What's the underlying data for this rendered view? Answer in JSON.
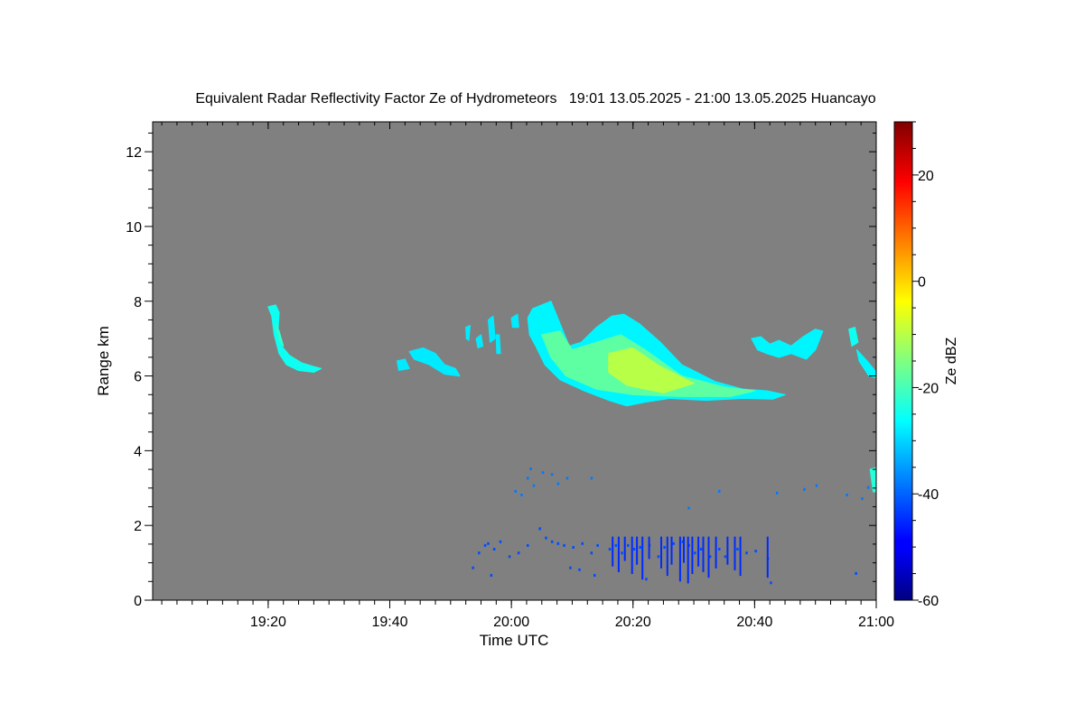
{
  "chart_data": {
    "type": "heatmap",
    "title": "Equivalent Radar Reflectivity Factor Ze of Hydrometeors   19:01 13.05.2025 - 21:00 13.05.2025 Huancayo",
    "xlabel": "Time UTC",
    "ylabel": "Range km",
    "x_range_minutes": [
      1141,
      1260
    ],
    "xticks": [
      {
        "label": "19:20",
        "minutes": 1160
      },
      {
        "label": "19:40",
        "minutes": 1180
      },
      {
        "label": "20:00",
        "minutes": 1200
      },
      {
        "label": "20:20",
        "minutes": 1220
      },
      {
        "label": "20:40",
        "minutes": 1240
      },
      {
        "label": "21:00",
        "minutes": 1260
      }
    ],
    "ylim": [
      0,
      12.8
    ],
    "yticks": [
      0,
      2,
      4,
      6,
      8,
      10,
      12
    ],
    "background_color": "#808080",
    "colorbar": {
      "label": "Ze dBZ",
      "range": [
        -60,
        30
      ],
      "ticks": [
        -60,
        -40,
        -20,
        0,
        20
      ],
      "colormap": "jet"
    },
    "echoes": [
      {
        "kind": "cloud",
        "dbz": -25,
        "points": [
          [
            1160.0,
            7.85
          ],
          [
            1161.2,
            7.9
          ],
          [
            1161.8,
            7.7
          ],
          [
            1161.6,
            7.2
          ],
          [
            1162.2,
            6.8
          ],
          [
            1163.5,
            6.55
          ],
          [
            1165.5,
            6.35
          ],
          [
            1167.5,
            6.25
          ],
          [
            1168.7,
            6.2
          ],
          [
            1167.5,
            6.1
          ],
          [
            1165.0,
            6.15
          ],
          [
            1163.0,
            6.3
          ],
          [
            1161.8,
            6.6
          ],
          [
            1161.0,
            7.1
          ],
          [
            1160.6,
            7.6
          ]
        ]
      },
      {
        "kind": "cloud",
        "dbz": -22,
        "points": [
          [
            1161.2,
            7.4
          ],
          [
            1161.8,
            7.2
          ],
          [
            1162.5,
            6.8
          ],
          [
            1161.9,
            6.9
          ]
        ]
      },
      {
        "kind": "cloud",
        "dbz": -28,
        "points": [
          [
            1181.2,
            6.4
          ],
          [
            1182.5,
            6.45
          ],
          [
            1183.2,
            6.2
          ],
          [
            1181.5,
            6.15
          ]
        ]
      },
      {
        "kind": "cloud",
        "dbz": -28,
        "points": [
          [
            1183.2,
            6.65
          ],
          [
            1185.5,
            6.75
          ],
          [
            1187.5,
            6.6
          ],
          [
            1189.0,
            6.3
          ],
          [
            1190.8,
            6.2
          ],
          [
            1191.5,
            6.0
          ],
          [
            1189.0,
            6.05
          ],
          [
            1186.5,
            6.3
          ],
          [
            1184.0,
            6.45
          ]
        ]
      },
      {
        "kind": "cloud",
        "dbz": -28,
        "points": [
          [
            1192.5,
            7.3
          ],
          [
            1193.2,
            7.35
          ],
          [
            1193.0,
            6.95
          ],
          [
            1192.6,
            7.0
          ]
        ]
      },
      {
        "kind": "cloud",
        "dbz": -28,
        "points": [
          [
            1194.2,
            7.0
          ],
          [
            1195.0,
            7.1
          ],
          [
            1195.3,
            6.8
          ],
          [
            1194.5,
            6.75
          ]
        ]
      },
      {
        "kind": "cloud",
        "dbz": -28,
        "points": [
          [
            1196.2,
            7.5
          ],
          [
            1197.0,
            7.6
          ],
          [
            1197.3,
            7.0
          ],
          [
            1196.5,
            6.9
          ]
        ]
      },
      {
        "kind": "cloud",
        "dbz": -28,
        "points": [
          [
            1197.5,
            7.1
          ],
          [
            1198.0,
            7.1
          ],
          [
            1198.2,
            6.6
          ],
          [
            1197.6,
            6.6
          ]
        ]
      },
      {
        "kind": "cloud",
        "dbz": -28,
        "points": [
          [
            1200.0,
            7.55
          ],
          [
            1201.0,
            7.65
          ],
          [
            1201.2,
            7.3
          ],
          [
            1200.2,
            7.3
          ]
        ]
      },
      {
        "kind": "cloud",
        "dbz": -27,
        "points": [
          [
            1202.7,
            7.55
          ],
          [
            1203.5,
            7.8
          ],
          [
            1205.0,
            7.9
          ],
          [
            1206.5,
            8.0
          ],
          [
            1208.5,
            7.2
          ],
          [
            1209.5,
            6.8
          ],
          [
            1211.5,
            6.9
          ],
          [
            1214.0,
            7.3
          ],
          [
            1216.5,
            7.6
          ],
          [
            1218.5,
            7.65
          ],
          [
            1221.0,
            7.4
          ],
          [
            1224.5,
            6.9
          ],
          [
            1228.0,
            6.3
          ],
          [
            1233.5,
            5.85
          ],
          [
            1238.0,
            5.65
          ],
          [
            1242.0,
            5.6
          ],
          [
            1245.0,
            5.5
          ],
          [
            1243.0,
            5.38
          ],
          [
            1238.0,
            5.4
          ],
          [
            1232.0,
            5.35
          ],
          [
            1226.0,
            5.4
          ],
          [
            1222.0,
            5.3
          ],
          [
            1219.0,
            5.2
          ],
          [
            1216.0,
            5.35
          ],
          [
            1212.0,
            5.6
          ],
          [
            1208.0,
            5.9
          ],
          [
            1205.5,
            6.3
          ],
          [
            1204.0,
            6.8
          ],
          [
            1203.0,
            7.1
          ]
        ]
      },
      {
        "kind": "cloud",
        "dbz": -18,
        "points": [
          [
            1205.0,
            7.1
          ],
          [
            1208.0,
            7.2
          ],
          [
            1210.0,
            6.7
          ],
          [
            1214.0,
            6.9
          ],
          [
            1218.0,
            7.1
          ],
          [
            1222.0,
            6.7
          ],
          [
            1228.0,
            6.0
          ],
          [
            1235.0,
            5.7
          ],
          [
            1240.0,
            5.6
          ],
          [
            1236.0,
            5.45
          ],
          [
            1228.0,
            5.45
          ],
          [
            1220.0,
            5.5
          ],
          [
            1214.0,
            5.65
          ],
          [
            1209.0,
            6.0
          ],
          [
            1206.5,
            6.5
          ]
        ]
      },
      {
        "kind": "cloud",
        "dbz": -10,
        "points": [
          [
            1216.0,
            6.6
          ],
          [
            1220.0,
            6.75
          ],
          [
            1224.0,
            6.3
          ],
          [
            1230.0,
            5.8
          ],
          [
            1225.0,
            5.55
          ],
          [
            1219.0,
            5.75
          ],
          [
            1216.0,
            6.1
          ]
        ]
      },
      {
        "kind": "cloud",
        "dbz": -27,
        "points": [
          [
            1239.5,
            7.0
          ],
          [
            1241.0,
            7.05
          ],
          [
            1242.5,
            6.85
          ],
          [
            1244.0,
            6.95
          ],
          [
            1246.0,
            6.8
          ],
          [
            1248.0,
            7.05
          ],
          [
            1250.0,
            7.25
          ],
          [
            1251.2,
            7.2
          ],
          [
            1250.0,
            6.7
          ],
          [
            1248.5,
            6.45
          ],
          [
            1246.0,
            6.6
          ],
          [
            1244.0,
            6.5
          ],
          [
            1242.0,
            6.6
          ],
          [
            1240.5,
            6.7
          ]
        ]
      },
      {
        "kind": "cloud",
        "dbz": -25,
        "points": [
          [
            1255.5,
            7.25
          ],
          [
            1256.5,
            7.3
          ],
          [
            1257.0,
            6.9
          ],
          [
            1256.0,
            6.8
          ]
        ]
      },
      {
        "kind": "cloud",
        "dbz": -27,
        "points": [
          [
            1256.8,
            6.7
          ],
          [
            1258.5,
            6.4
          ],
          [
            1260.0,
            6.1
          ],
          [
            1260.0,
            5.95
          ],
          [
            1258.8,
            6.0
          ],
          [
            1257.2,
            6.4
          ]
        ]
      },
      {
        "kind": "cloud",
        "dbz": -23,
        "points": [
          [
            1259.0,
            3.5
          ],
          [
            1260.0,
            3.55
          ],
          [
            1260.0,
            2.9
          ],
          [
            1259.5,
            2.9
          ]
        ]
      },
      {
        "kind": "speckle",
        "dbz": -38,
        "points": [
          [
            1202.5,
            3.3
          ],
          [
            1203.5,
            3.1
          ],
          [
            1205.0,
            3.45
          ],
          [
            1206.5,
            3.4
          ],
          [
            1203.0,
            3.55
          ],
          [
            1209.0,
            3.3
          ],
          [
            1213.0,
            3.3
          ],
          [
            1200.5,
            2.95
          ],
          [
            1201.5,
            2.85
          ],
          [
            1207.5,
            3.15
          ],
          [
            1229.0,
            2.5
          ],
          [
            1234.0,
            2.95
          ],
          [
            1243.5,
            2.9
          ],
          [
            1248.0,
            3.0
          ],
          [
            1250.0,
            3.1
          ],
          [
            1255.0,
            2.85
          ],
          [
            1258.5,
            3.05
          ],
          [
            1257.5,
            2.75
          ]
        ]
      },
      {
        "kind": "speckle",
        "dbz": -42,
        "points": [
          [
            1193.5,
            0.9
          ],
          [
            1194.5,
            1.3
          ],
          [
            1195.5,
            1.5
          ],
          [
            1196.0,
            1.55
          ],
          [
            1197.0,
            1.4
          ],
          [
            1198.0,
            1.6
          ],
          [
            1196.5,
            0.7
          ],
          [
            1199.5,
            1.2
          ],
          [
            1201.0,
            1.3
          ],
          [
            1202.5,
            1.5
          ],
          [
            1204.5,
            1.95
          ],
          [
            1205.5,
            1.7
          ],
          [
            1206.5,
            1.6
          ],
          [
            1207.5,
            1.55
          ],
          [
            1208.5,
            1.5
          ],
          [
            1210.0,
            1.45
          ],
          [
            1211.5,
            1.55
          ],
          [
            1213.0,
            1.3
          ],
          [
            1214.0,
            1.5
          ],
          [
            1216.0,
            1.4
          ],
          [
            1217.0,
            1.5
          ],
          [
            1218.0,
            1.3
          ],
          [
            1219.0,
            1.5
          ],
          [
            1220.0,
            1.4
          ],
          [
            1221.0,
            1.45
          ],
          [
            1222.5,
            1.5
          ],
          [
            1224.0,
            1.2
          ],
          [
            1225.0,
            1.45
          ],
          [
            1226.5,
            1.55
          ],
          [
            1228.0,
            1.6
          ],
          [
            1229.0,
            1.5
          ],
          [
            1230.0,
            1.3
          ],
          [
            1231.0,
            1.4
          ],
          [
            1232.5,
            1.2
          ],
          [
            1234.0,
            1.4
          ],
          [
            1235.0,
            1.2
          ],
          [
            1237.0,
            1.4
          ],
          [
            1238.5,
            1.3
          ],
          [
            1240.0,
            1.35
          ],
          [
            1242.0,
            1.15
          ],
          [
            1211.0,
            0.85
          ],
          [
            1213.5,
            0.7
          ],
          [
            1209.5,
            0.9
          ],
          [
            1222.0,
            0.6
          ],
          [
            1256.5,
            0.75
          ],
          [
            1242.5,
            0.5
          ]
        ]
      },
      {
        "kind": "columns",
        "dbz": -45,
        "points": [
          [
            1216.5,
            0.9
          ],
          [
            1217.5,
            0.75
          ],
          [
            1218.5,
            1.05
          ],
          [
            1219.7,
            0.7
          ],
          [
            1220.5,
            0.95
          ],
          [
            1221.4,
            0.55
          ],
          [
            1222.5,
            1.1
          ],
          [
            1224.5,
            0.85
          ],
          [
            1225.5,
            0.65
          ],
          [
            1226.2,
            0.95
          ],
          [
            1227.6,
            0.5
          ],
          [
            1228.2,
            1.0
          ],
          [
            1228.9,
            0.45
          ],
          [
            1229.6,
            0.7
          ],
          [
            1230.6,
            0.9
          ],
          [
            1231.4,
            0.75
          ],
          [
            1232.3,
            0.6
          ],
          [
            1233.5,
            0.85
          ],
          [
            1235.4,
            0.95
          ],
          [
            1236.6,
            0.8
          ],
          [
            1237.5,
            0.65
          ],
          [
            1242.0,
            0.6
          ]
        ]
      }
    ]
  }
}
